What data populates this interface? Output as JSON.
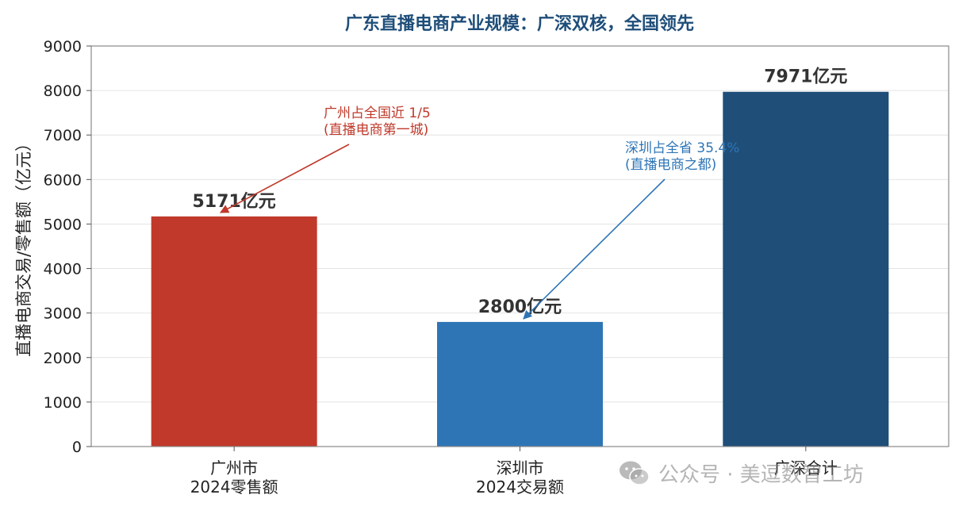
{
  "chart_data": {
    "type": "bar",
    "title": "广东直播电商产业规模：广深双核，全国领先",
    "ylabel": "直播电商交易/零售额（亿元）",
    "xlabel": "",
    "ylim": [
      0,
      9000
    ],
    "yticks": [
      "0",
      "1000",
      "2000",
      "3000",
      "4000",
      "5000",
      "6000",
      "7000",
      "8000",
      "9000"
    ],
    "grid": "y",
    "categories": [
      {
        "line1": "广州市",
        "line2": "2024零售额"
      },
      {
        "line1": "深圳市",
        "line2": "2024交易额"
      },
      {
        "line1": "广深合计",
        "line2": ""
      }
    ],
    "values": [
      5171,
      2800,
      7971
    ],
    "value_labels": [
      "5171亿元",
      "2800亿元",
      "7971亿元"
    ],
    "colors": [
      "#c0392b",
      "#2e75b6",
      "#1f4e79"
    ],
    "annotations": [
      {
        "target": 0,
        "line1": "广州占全国近 1/5",
        "line2": "(直播电商第一城)",
        "color": "#c0392b"
      },
      {
        "target": 1,
        "line1": "深圳占全省 35.4%",
        "line2": "(直播电商之都)",
        "color": "#2e75b6"
      }
    ]
  },
  "title_color": "#1f4e79",
  "watermark": {
    "text": "公众号 · 美逗数智工坊",
    "icon": "wechat-icon"
  }
}
